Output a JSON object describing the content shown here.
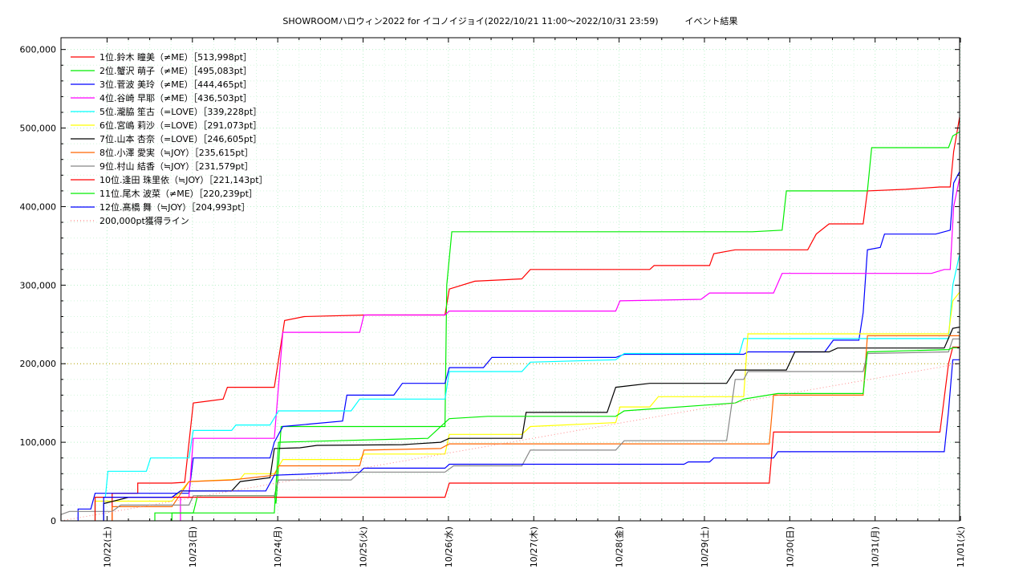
{
  "chart_data": {
    "type": "line",
    "title": "SHOWROOMハロウィン2022 for イコノイジョイ(2022/10/21 11:00～2022/10/31 23:59)　　　イベント結果",
    "xlabel": "",
    "ylabel": "",
    "x_unit": "day",
    "xlim": [
      0,
      10.53
    ],
    "ylim": [
      0,
      615000
    ],
    "x_ticks": [
      {
        "label": "10/22(土)",
        "x": 0.54
      },
      {
        "label": "10/23(日)",
        "x": 1.54
      },
      {
        "label": "10/24(月)",
        "x": 2.54
      },
      {
        "label": "10/25(火)",
        "x": 3.54
      },
      {
        "label": "10/26(水)",
        "x": 4.54
      },
      {
        "label": "10/27(木)",
        "x": 5.54
      },
      {
        "label": "10/28(金)",
        "x": 6.54
      },
      {
        "label": "10/29(土)",
        "x": 7.54
      },
      {
        "label": "10/30(日)",
        "x": 8.54
      },
      {
        "label": "10/31(月)",
        "x": 9.54
      },
      {
        "label": "11/01(火)",
        "x": 10.54
      }
    ],
    "y_ticks": [
      {
        "label": "0",
        "v": 0
      },
      {
        "label": "100,000",
        "v": 100000
      },
      {
        "label": "200,000",
        "v": 200000
      },
      {
        "label": "300,000",
        "v": 300000
      },
      {
        "label": "400,000",
        "v": 400000
      },
      {
        "label": "500,000",
        "v": 500000
      },
      {
        "label": "600,000",
        "v": 600000
      }
    ],
    "grid": true,
    "legend_position": "top-left",
    "series": [
      {
        "name": "1位.鈴木 瞳美（≠ME）［513,998pt］",
        "color": "#ff0000",
        "points": [
          [
            0.6,
            0
          ],
          [
            0.6,
            35000
          ],
          [
            0.9,
            35000
          ],
          [
            0.9,
            48000
          ],
          [
            1.3,
            48000
          ],
          [
            1.45,
            49000
          ],
          [
            1.55,
            150000
          ],
          [
            1.9,
            155000
          ],
          [
            1.95,
            170000
          ],
          [
            2.5,
            170000
          ],
          [
            2.62,
            255000
          ],
          [
            2.85,
            260000
          ],
          [
            3.6,
            262000
          ],
          [
            4.5,
            262000
          ],
          [
            4.55,
            295000
          ],
          [
            4.85,
            305000
          ],
          [
            5.4,
            308000
          ],
          [
            5.5,
            320000
          ],
          [
            6.9,
            320000
          ],
          [
            6.95,
            325000
          ],
          [
            7.6,
            325000
          ],
          [
            7.65,
            340000
          ],
          [
            7.9,
            345000
          ],
          [
            8.75,
            345000
          ],
          [
            8.85,
            365000
          ],
          [
            9.0,
            378000
          ],
          [
            9.4,
            378000
          ],
          [
            9.45,
            420000
          ],
          [
            9.9,
            422000
          ],
          [
            10.3,
            425000
          ],
          [
            10.42,
            425000
          ],
          [
            10.46,
            470000
          ],
          [
            10.53,
            513998
          ]
        ]
      },
      {
        "name": "2位.蟹沢 萌子（≠ME）［495,083pt］",
        "color": "#00ee00",
        "points": [
          [
            1.1,
            0
          ],
          [
            1.1,
            10000
          ],
          [
            1.55,
            10000
          ],
          [
            1.6,
            32000
          ],
          [
            2.5,
            32000
          ],
          [
            2.52,
            22000
          ],
          [
            2.58,
            120000
          ],
          [
            4.5,
            120000
          ],
          [
            4.52,
            300000
          ],
          [
            4.58,
            368000
          ],
          [
            8.1,
            368000
          ],
          [
            8.45,
            370000
          ],
          [
            8.5,
            420000
          ],
          [
            9.45,
            420000
          ],
          [
            9.5,
            475000
          ],
          [
            10.4,
            475000
          ],
          [
            10.45,
            490000
          ],
          [
            10.53,
            495083
          ]
        ]
      },
      {
        "name": "3位.菅波 美玲（≠ME）［444,465pt］",
        "color": "#0000ff",
        "points": [
          [
            0.2,
            0
          ],
          [
            0.2,
            15000
          ],
          [
            0.35,
            15000
          ],
          [
            0.4,
            35000
          ],
          [
            1.5,
            35000
          ],
          [
            1.55,
            80000
          ],
          [
            2.45,
            80000
          ],
          [
            2.5,
            100000
          ],
          [
            2.6,
            120000
          ],
          [
            3.3,
            127000
          ],
          [
            3.35,
            160000
          ],
          [
            3.9,
            160000
          ],
          [
            4.0,
            175000
          ],
          [
            4.5,
            175000
          ],
          [
            4.55,
            195000
          ],
          [
            4.95,
            195000
          ],
          [
            5.05,
            208000
          ],
          [
            6.5,
            208000
          ],
          [
            6.6,
            212000
          ],
          [
            8.0,
            212000
          ],
          [
            8.05,
            215000
          ],
          [
            8.95,
            215000
          ],
          [
            9.05,
            230000
          ],
          [
            9.35,
            230000
          ],
          [
            9.4,
            265000
          ],
          [
            9.45,
            345000
          ],
          [
            9.6,
            348000
          ],
          [
            9.65,
            365000
          ],
          [
            10.25,
            365000
          ],
          [
            10.42,
            370000
          ],
          [
            10.46,
            430000
          ],
          [
            10.53,
            444465
          ]
        ]
      },
      {
        "name": "4位.谷崎 早耶（≠ME）［436,503pt］",
        "color": "#ff00ff",
        "points": [
          [
            1.4,
            0
          ],
          [
            1.4,
            30000
          ],
          [
            1.5,
            30000
          ],
          [
            1.55,
            105000
          ],
          [
            2.5,
            105000
          ],
          [
            2.6,
            240000
          ],
          [
            3.5,
            240000
          ],
          [
            3.55,
            262000
          ],
          [
            4.5,
            262000
          ],
          [
            4.55,
            267000
          ],
          [
            6.5,
            267000
          ],
          [
            6.55,
            280000
          ],
          [
            7.5,
            282000
          ],
          [
            7.6,
            290000
          ],
          [
            8.35,
            290000
          ],
          [
            8.45,
            315000
          ],
          [
            10.2,
            315000
          ],
          [
            10.35,
            320000
          ],
          [
            10.42,
            320000
          ],
          [
            10.46,
            400000
          ],
          [
            10.53,
            436503
          ]
        ]
      },
      {
        "name": "5位.瀧脇 笙古（=LOVE）［339,228pt］",
        "color": "#00ffff",
        "points": [
          [
            0.4,
            0
          ],
          [
            0.4,
            30000
          ],
          [
            0.52,
            30000
          ],
          [
            0.55,
            63000
          ],
          [
            1.0,
            63000
          ],
          [
            1.05,
            80000
          ],
          [
            1.5,
            80000
          ],
          [
            1.55,
            115000
          ],
          [
            2.0,
            115000
          ],
          [
            2.05,
            122000
          ],
          [
            2.45,
            122000
          ],
          [
            2.55,
            140000
          ],
          [
            3.4,
            140000
          ],
          [
            3.5,
            155000
          ],
          [
            4.5,
            155000
          ],
          [
            4.55,
            190000
          ],
          [
            5.4,
            190000
          ],
          [
            5.5,
            202000
          ],
          [
            6.5,
            205000
          ],
          [
            6.6,
            213000
          ],
          [
            7.95,
            213000
          ],
          [
            8.0,
            232000
          ],
          [
            10.4,
            232000
          ],
          [
            10.45,
            300000
          ],
          [
            10.53,
            339228
          ]
        ]
      },
      {
        "name": "6位.宮嶋 莉沙（=LOVE）［291,073pt］",
        "color": "#ffff00",
        "points": [
          [
            0.4,
            0
          ],
          [
            0.4,
            25000
          ],
          [
            1.3,
            25000
          ],
          [
            1.5,
            50000
          ],
          [
            2.1,
            53000
          ],
          [
            2.15,
            60000
          ],
          [
            2.5,
            60000
          ],
          [
            2.6,
            78000
          ],
          [
            3.5,
            78000
          ],
          [
            3.55,
            85000
          ],
          [
            4.5,
            85000
          ],
          [
            4.55,
            110000
          ],
          [
            5.4,
            110000
          ],
          [
            5.5,
            120000
          ],
          [
            6.5,
            125000
          ],
          [
            6.55,
            145000
          ],
          [
            6.9,
            145000
          ],
          [
            7.0,
            158000
          ],
          [
            8.0,
            158000
          ],
          [
            8.05,
            238000
          ],
          [
            10.4,
            238000
          ],
          [
            10.45,
            280000
          ],
          [
            10.53,
            291073
          ]
        ]
      },
      {
        "name": "7位.山本 杏奈（=LOVE）［246,605pt］",
        "color": "#000000",
        "points": [
          [
            0.5,
            0
          ],
          [
            0.5,
            22000
          ],
          [
            0.8,
            30000
          ],
          [
            1.3,
            30000
          ],
          [
            1.4,
            38000
          ],
          [
            2.0,
            38000
          ],
          [
            2.1,
            50000
          ],
          [
            2.45,
            55000
          ],
          [
            2.5,
            92000
          ],
          [
            2.8,
            93000
          ],
          [
            3.0,
            96000
          ],
          [
            4.0,
            97000
          ],
          [
            4.45,
            100000
          ],
          [
            4.55,
            105000
          ],
          [
            5.4,
            105000
          ],
          [
            5.45,
            138000
          ],
          [
            6.4,
            138000
          ],
          [
            6.5,
            170000
          ],
          [
            6.9,
            175000
          ],
          [
            7.8,
            175000
          ],
          [
            7.9,
            192000
          ],
          [
            8.5,
            192000
          ],
          [
            8.6,
            215000
          ],
          [
            9.0,
            215000
          ],
          [
            9.1,
            220000
          ],
          [
            10.35,
            220000
          ],
          [
            10.45,
            245000
          ],
          [
            10.53,
            246605
          ]
        ]
      },
      {
        "name": "8位.小澤 愛実（≒JOY）［235,615pt］",
        "color": "#ff6600",
        "points": [
          [
            0.6,
            0
          ],
          [
            0.6,
            18000
          ],
          [
            1.3,
            18000
          ],
          [
            1.5,
            50000
          ],
          [
            2.0,
            52000
          ],
          [
            2.5,
            58000
          ],
          [
            2.55,
            70000
          ],
          [
            3.5,
            70000
          ],
          [
            3.55,
            90000
          ],
          [
            4.45,
            92000
          ],
          [
            4.55,
            98000
          ],
          [
            8.3,
            98000
          ],
          [
            8.35,
            160000
          ],
          [
            9.4,
            160000
          ],
          [
            9.45,
            235615
          ],
          [
            10.53,
            235615
          ]
        ]
      },
      {
        "name": "9位.村山 結香（≒JOY）［231,579pt］",
        "color": "#888888",
        "points": [
          [
            0.0,
            0
          ],
          [
            0.0,
            8000
          ],
          [
            0.1,
            12000
          ],
          [
            0.6,
            12000
          ],
          [
            0.7,
            20000
          ],
          [
            1.5,
            20000
          ],
          [
            1.55,
            32000
          ],
          [
            2.5,
            32000
          ],
          [
            2.55,
            52000
          ],
          [
            3.4,
            52000
          ],
          [
            3.5,
            62000
          ],
          [
            4.5,
            62000
          ],
          [
            4.6,
            70000
          ],
          [
            5.4,
            70000
          ],
          [
            5.5,
            90000
          ],
          [
            6.5,
            90000
          ],
          [
            6.6,
            102000
          ],
          [
            7.8,
            102000
          ],
          [
            7.9,
            180000
          ],
          [
            8.0,
            180000
          ],
          [
            8.05,
            190000
          ],
          [
            9.4,
            190000
          ],
          [
            9.45,
            213000
          ],
          [
            10.4,
            215000
          ],
          [
            10.45,
            231579
          ],
          [
            10.53,
            231579
          ]
        ]
      },
      {
        "name": "10位.逢田 珠里依（≒JOY）［221,143pt］",
        "color": "#ff0000",
        "points": [
          [
            0.4,
            0
          ],
          [
            0.4,
            30000
          ],
          [
            4.5,
            30000
          ],
          [
            4.55,
            48000
          ],
          [
            8.3,
            48000
          ],
          [
            8.35,
            113000
          ],
          [
            10.3,
            113000
          ],
          [
            10.4,
            200000
          ],
          [
            10.45,
            221143
          ],
          [
            10.53,
            221143
          ]
        ]
      },
      {
        "name": "11位.尾木 波菜（≠ME）［220,239pt］",
        "color": "#00ee00",
        "points": [
          [
            1.3,
            0
          ],
          [
            1.3,
            10000
          ],
          [
            2.5,
            10000
          ],
          [
            2.55,
            100000
          ],
          [
            4.3,
            105000
          ],
          [
            4.55,
            130000
          ],
          [
            5.0,
            133000
          ],
          [
            6.5,
            133000
          ],
          [
            6.6,
            140000
          ],
          [
            7.9,
            150000
          ],
          [
            8.0,
            155000
          ],
          [
            8.4,
            162000
          ],
          [
            9.4,
            162000
          ],
          [
            9.45,
            215000
          ],
          [
            10.4,
            218000
          ],
          [
            10.45,
            220239
          ],
          [
            10.53,
            220239
          ]
        ]
      },
      {
        "name": "12位.髙橋 舞（≒JOY）［204,993pt］",
        "color": "#0000ff",
        "points": [
          [
            0.5,
            0
          ],
          [
            0.5,
            30000
          ],
          [
            1.3,
            30000
          ],
          [
            1.4,
            38000
          ],
          [
            2.4,
            38000
          ],
          [
            2.5,
            58000
          ],
          [
            3.5,
            62000
          ],
          [
            3.55,
            67000
          ],
          [
            4.5,
            67000
          ],
          [
            4.55,
            72000
          ],
          [
            7.3,
            72000
          ],
          [
            7.35,
            75000
          ],
          [
            7.6,
            75000
          ],
          [
            7.65,
            80000
          ],
          [
            8.35,
            80000
          ],
          [
            8.4,
            88000
          ],
          [
            10.35,
            88000
          ],
          [
            10.4,
            140000
          ],
          [
            10.45,
            204993
          ],
          [
            10.53,
            204993
          ]
        ]
      },
      {
        "name": "200,000pt獲得ライン",
        "color": "#ff8888",
        "dotted": true,
        "points": [
          [
            0.0,
            0
          ],
          [
            10.53,
            200000
          ]
        ]
      }
    ]
  }
}
